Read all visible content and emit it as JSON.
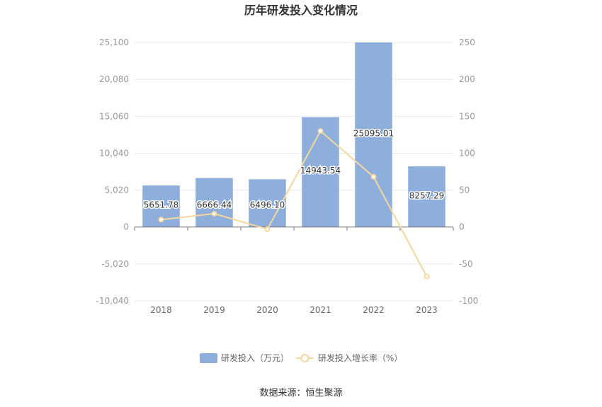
{
  "chart_data": {
    "type": "bar",
    "title": "历年研发投入变化情况",
    "categories": [
      "2018",
      "2019",
      "2020",
      "2021",
      "2022",
      "2023"
    ],
    "series": [
      {
        "name": "研发投入（万元）",
        "type": "bar",
        "axis": "left",
        "values": [
          5651.78,
          6666.44,
          6496.1,
          14943.54,
          25095.01,
          8257.29
        ],
        "labels": [
          "5651.78",
          "6666.44",
          "6496.10",
          "14943.54",
          "25095.01",
          "8257.29"
        ]
      },
      {
        "name": "研发投入增长率（%）",
        "type": "line",
        "axis": "right",
        "values": [
          10,
          18,
          -3,
          130,
          68,
          -67
        ]
      }
    ],
    "y_left": {
      "ylim": [
        -10040,
        25100
      ],
      "ticks": [
        "25,100",
        "20,080",
        "15,060",
        "10,040",
        "5,020",
        "0",
        "-5,020",
        "-10,040"
      ]
    },
    "y_right": {
      "ylim": [
        -100,
        250
      ],
      "ticks": [
        "250",
        "200",
        "150",
        "100",
        "50",
        "0",
        "-50",
        "-100"
      ]
    },
    "grid": true,
    "legend": "bottom-center"
  },
  "colors": {
    "bar": "#8eaedb",
    "line": "#f7d79e",
    "grid": "#e6e9f0",
    "axis": "#6e7079"
  },
  "source_text": "数据来源：恒生聚源"
}
